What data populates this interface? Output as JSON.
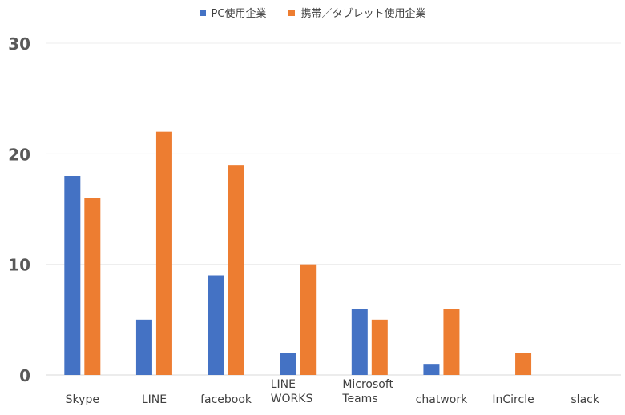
{
  "chart_data": {
    "type": "bar",
    "categories": [
      "Skype",
      "LINE",
      "facebook",
      "LINE WORKS",
      "Microsoft Teams",
      "chatwork",
      "InCircle",
      "slack"
    ],
    "category_lines": [
      [
        "Skype"
      ],
      [
        "LINE"
      ],
      [
        "facebook"
      ],
      [
        "LINE",
        "WORKS"
      ],
      [
        "Microsoft",
        "Teams"
      ],
      [
        "chatwork"
      ],
      [
        "InCircle"
      ],
      [
        "slack"
      ]
    ],
    "series": [
      {
        "name": "PC使用企業",
        "color": "#4472c4",
        "values": [
          18,
          5,
          9,
          2,
          6,
          1,
          0,
          0
        ]
      },
      {
        "name": "携帯／タブレット使用企業",
        "color": "#ed7d31",
        "values": [
          16,
          22,
          19,
          10,
          5,
          6,
          2,
          0
        ]
      }
    ],
    "ylim": [
      0,
      30
    ],
    "yticks": [
      0,
      10,
      20,
      30
    ],
    "grid": true,
    "legend_position": "top-center"
  }
}
